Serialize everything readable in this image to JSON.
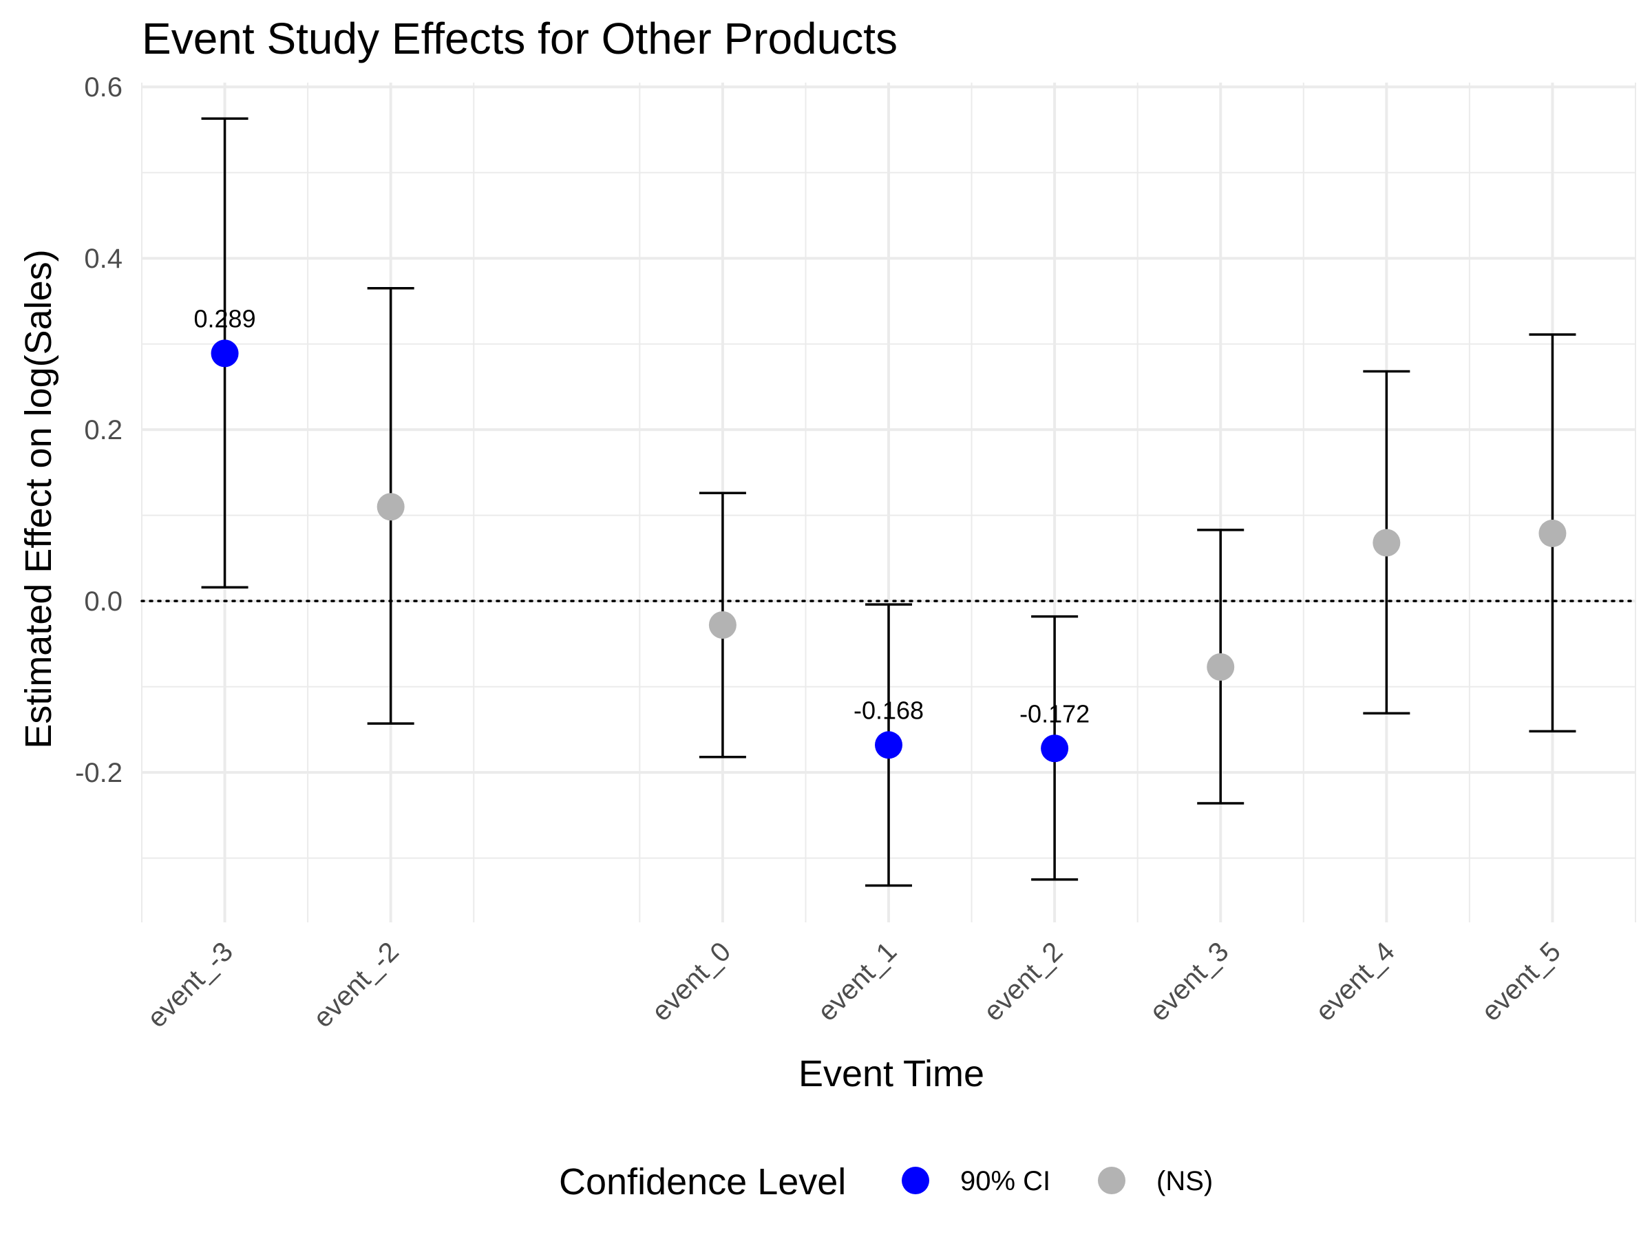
{
  "chart_data": {
    "type": "scatter",
    "title": "Event Study Effects for Other Products",
    "xlabel": "Event Time",
    "ylabel": "Estimated Effect on log(Sales)",
    "categories": [
      "event_-3",
      "event_-2",
      "event_0",
      "event_1",
      "event_2",
      "event_3",
      "event_4",
      "event_5"
    ],
    "x_positions": [
      -3,
      -2,
      0,
      1,
      2,
      3,
      4,
      5
    ],
    "estimates": [
      0.289,
      0.11,
      -0.028,
      -0.168,
      -0.172,
      -0.077,
      0.068,
      0.079
    ],
    "ci_lower": [
      0.016,
      -0.143,
      -0.182,
      -0.332,
      -0.325,
      -0.236,
      -0.131,
      -0.152
    ],
    "ci_upper": [
      0.563,
      0.365,
      0.126,
      -0.004,
      -0.018,
      0.083,
      0.268,
      0.311
    ],
    "significance": [
      "90% CI",
      "(NS)",
      "(NS)",
      "90% CI",
      "90% CI",
      "(NS)",
      "(NS)",
      "(NS)"
    ],
    "data_labels": [
      "0.289",
      "",
      "",
      "-0.168",
      "-0.172",
      "",
      "",
      ""
    ],
    "y_ticks": [
      -0.2,
      0.0,
      0.2,
      0.4,
      0.6
    ],
    "y_tick_labels": [
      "-0.2",
      "0.0",
      "0.2",
      "0.4",
      "0.6"
    ],
    "ylim": [
      -0.375,
      0.605
    ],
    "xlim": [
      -3.5,
      5.5
    ],
    "reference_line": 0,
    "grid": true,
    "legend": {
      "title": "Confidence Level",
      "position": "bottom",
      "entries": [
        {
          "label": "90% CI",
          "color": "#0000ff"
        },
        {
          "label": "(NS)",
          "color": "#b3b3b3"
        }
      ]
    },
    "colors": {
      "90% CI": "#0000ff",
      "(NS)": "#b3b3b3"
    }
  }
}
